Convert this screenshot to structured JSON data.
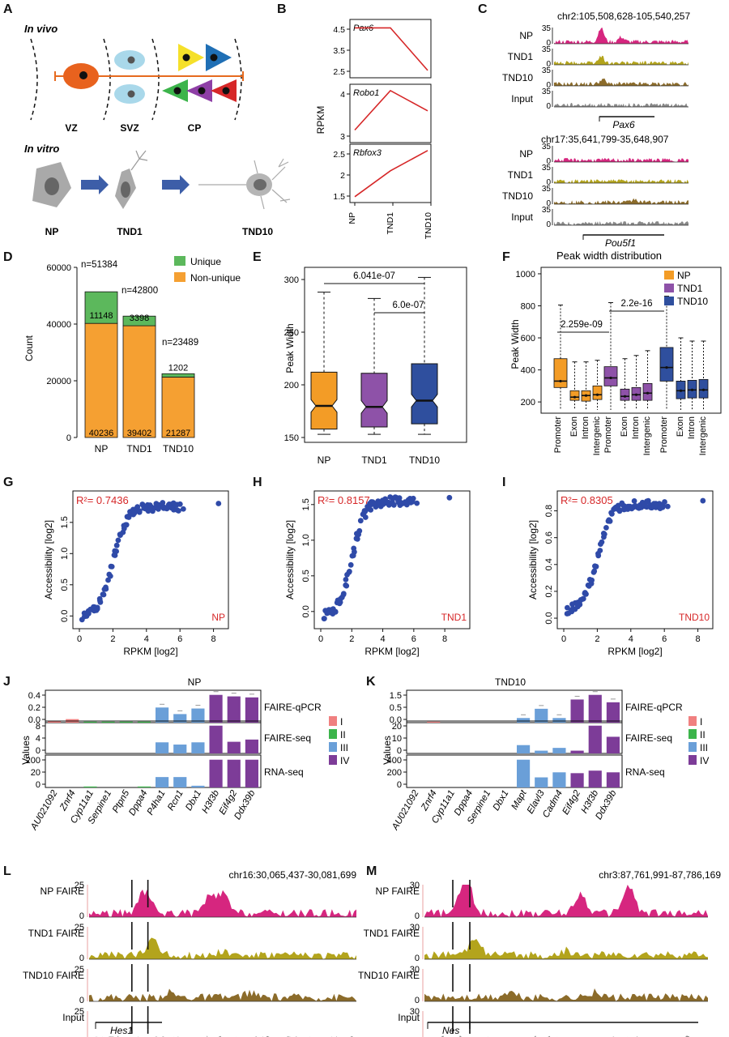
{
  "panel_letters": [
    "A",
    "B",
    "C",
    "D",
    "E",
    "F",
    "G",
    "H",
    "I",
    "J",
    "K",
    "L",
    "M"
  ],
  "panelA": {
    "invivo": "In vivo",
    "invitro": "In vitro",
    "zones": [
      "VZ",
      "SVZ",
      "CP"
    ],
    "stages": [
      "NP",
      "TND1",
      "TND10"
    ]
  },
  "panelB": {
    "ylabel": "RPKM",
    "xticks": [
      "NP",
      "TND1",
      "TND10"
    ]
  },
  "panelC": {
    "region1": "chr2:105,508,628-105,540,257",
    "region2": "chr17:35,641,799-35,648,907",
    "tracks": [
      "NP",
      "TND1",
      "TND10",
      "Input"
    ],
    "gene1": "Pax6",
    "gene2": "Pou5f1",
    "ymax": "35",
    "yzero": "0"
  },
  "panelD": {
    "ylabel": "Count",
    "legend": [
      "Unique",
      "Non-unique"
    ],
    "ticks": [
      "0",
      "20000",
      "40000",
      "60000"
    ],
    "cats": [
      "NP",
      "TND1",
      "TND10"
    ],
    "totals": [
      "n=51384",
      "n=42800",
      "n=23489"
    ],
    "unique": [
      "11148",
      "3398",
      "1202"
    ],
    "nonunique": [
      "40236",
      "39402",
      "21287"
    ]
  },
  "panelE": {
    "ylabel": "Peak Width",
    "ticks": [
      "150",
      "200",
      "250",
      "300"
    ],
    "cats": [
      "NP",
      "TND1",
      "TND10"
    ],
    "pvals": [
      "6.041e-07",
      "6.0e-07"
    ]
  },
  "panelF": {
    "title": "Peak width distribution",
    "ylabel": "Peak Width",
    "ticks": [
      "200",
      "400",
      "600",
      "800",
      "1000"
    ],
    "legend": [
      "NP",
      "TND1",
      "TND10"
    ],
    "xcats": [
      "Promoter",
      "Exon",
      "Intron",
      "Intergenic"
    ],
    "pvals": [
      "2.259e-09",
      "2.2e-16"
    ]
  },
  "panelGHI": {
    "xlabel": "RPKM [log2]",
    "ylabel": "Accessibility [log2]",
    "r2": [
      "R²= 0.7436",
      "R²= 0.8157",
      "R²= 0.8305"
    ],
    "tags": [
      "NP",
      "TND1",
      "TND10"
    ]
  },
  "panelJ": {
    "title": "NP",
    "genes": [
      "AU021092",
      "Znrf4",
      "Cyp11a1",
      "Serpine1",
      "Ptpn5",
      "Dppa4",
      "P4ha1",
      "Rcn1",
      "Dbx1",
      "H3f3b",
      "Eif4g2",
      "Ddx39b"
    ],
    "ylabel": "Values",
    "rows": [
      "FAIRE-qPCR",
      "FAIRE-seq",
      "RNA-seq"
    ]
  },
  "panelK": {
    "title": "TND10",
    "genes": [
      "AU021092",
      "Znrf4",
      "Cyp11a1",
      "Dppa4",
      "Serpine1",
      "Dbx1",
      "Mapt",
      "Elavl3",
      "Cadm4",
      "Eif4g2",
      "H3f3b",
      "Ddx39b"
    ],
    "ylabel": "Values",
    "rows": [
      "FAIRE-qPCR",
      "FAIRE-seq",
      "RNA-seq"
    ]
  },
  "panelJK_legend": [
    "I",
    "II",
    "III",
    "IV"
  ],
  "panelL": {
    "region": "chr16:30,065,437-30,081,699",
    "tracks": [
      "NP FAIRE",
      "TND1 FAIRE",
      "TND10 FAIRE",
      "Input"
    ],
    "ymax": "25",
    "gene": "Hes1"
  },
  "panelM": {
    "region": "chr3:87,761,991-87,786,169",
    "tracks": [
      "NP FAIRE",
      "TND1 FAIRE",
      "TND10 FAIRE",
      "Input"
    ],
    "ymax": "30",
    "gene": "Nes"
  },
  "colors": {
    "np": "#f39c26",
    "tnd1": "#8e52a8",
    "tnd10": "#2f4f9e",
    "unique": "#5cb85c",
    "nonunique": "#f5a032",
    "pink": "#d6267f",
    "olive": "#b3a41c",
    "brown": "#8b6b2a",
    "grey": "#888888",
    "scatter": "#2f4aa8",
    "red": "#d62728",
    "I": "#f08080",
    "II": "#3cb44b",
    "III": "#6a9fd8",
    "IV": "#7d3c98"
  }
}
